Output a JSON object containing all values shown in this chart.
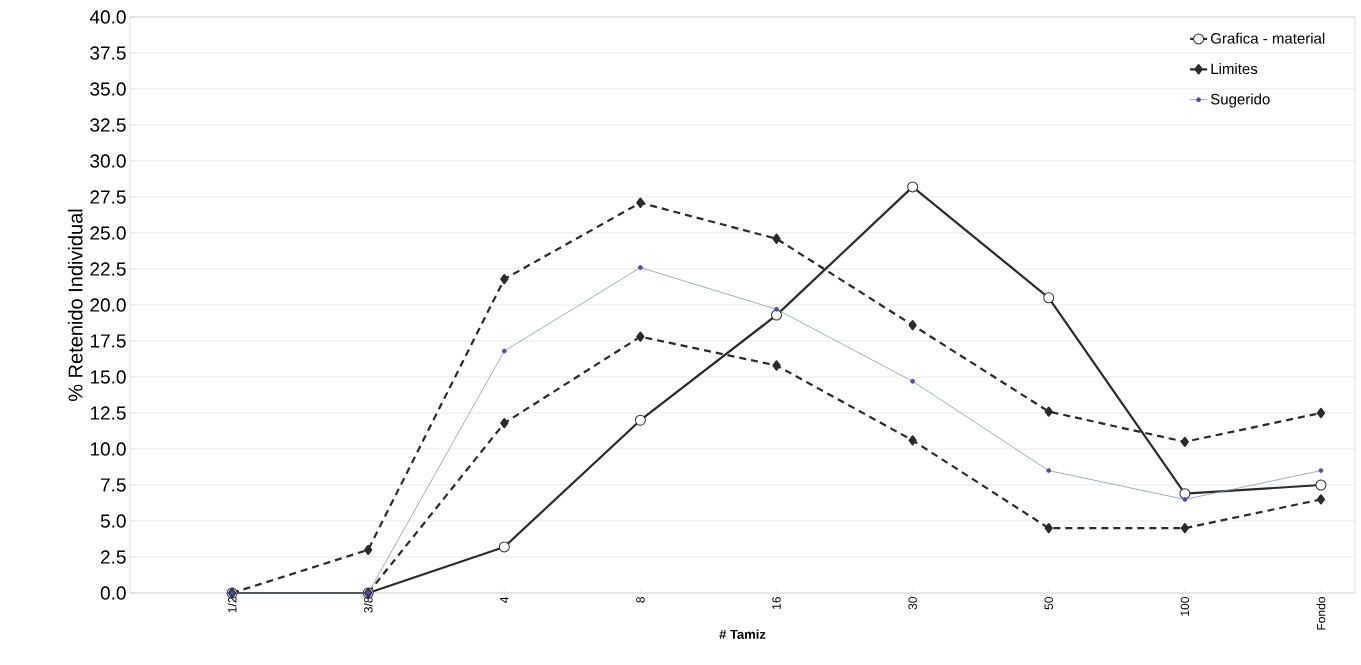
{
  "chart_data": {
    "type": "line",
    "xlabel": "# Tamiz",
    "ylabel": "% Retenido Individual",
    "categories": [
      "1/2",
      "3/8",
      "4",
      "8",
      "16",
      "30",
      "50",
      "100",
      "Fondo"
    ],
    "series": [
      {
        "name": "Grafica - material",
        "color": "#2b2b2b",
        "marker": "circle",
        "line_style": "solid",
        "values": [
          0,
          0,
          3.2,
          12.0,
          19.3,
          28.2,
          20.5,
          6.9,
          7.5
        ]
      },
      {
        "name": "Limites",
        "color": "#2b2b2b",
        "marker": "diamond",
        "line_style": "dashed",
        "values": [
          0,
          3.0,
          21.8,
          27.1,
          24.6,
          18.6,
          12.6,
          10.5,
          12.5
        ]
      },
      {
        "color": "#2b2b2b",
        "marker": "diamond",
        "line_style": "dashed",
        "values": [
          null,
          0,
          11.8,
          17.8,
          15.8,
          10.6,
          4.5,
          4.5,
          6.5
        ]
      },
      {
        "name": "Sugerido",
        "color": "#8f9aa8",
        "marker": "circle",
        "line_style": "solid",
        "values": [
          0,
          0,
          16.8,
          22.6,
          19.7,
          14.7,
          8.5,
          6.5,
          8.5
        ]
      }
    ],
    "ylim": [
      0,
      40
    ],
    "yticks": [
      {
        "value": 0,
        "label": "0.0"
      },
      {
        "value": 2.5,
        "label": "2.5"
      },
      {
        "value": 5,
        "label": "5.0"
      },
      {
        "value": 7.5,
        "label": "7.5"
      },
      {
        "value": 10,
        "label": "10.0"
      },
      {
        "value": 12.5,
        "label": "12.5"
      },
      {
        "value": 15,
        "label": "15.0"
      },
      {
        "value": 17.5,
        "label": "17.5"
      },
      {
        "value": 20,
        "label": "20.0"
      },
      {
        "value": 22.5,
        "label": "22.5"
      },
      {
        "value": 25,
        "label": "25.0"
      },
      {
        "value": 27.5,
        "label": "27.5"
      },
      {
        "value": 30,
        "label": "30.0"
      },
      {
        "value": 32.5,
        "label": "32.5"
      },
      {
        "value": 35,
        "label": "35.0"
      },
      {
        "value": 37.5,
        "label": "37.5"
      },
      {
        "value": 40,
        "label": "40.0"
      }
    ],
    "grid": "y",
    "legend": "top right"
  }
}
